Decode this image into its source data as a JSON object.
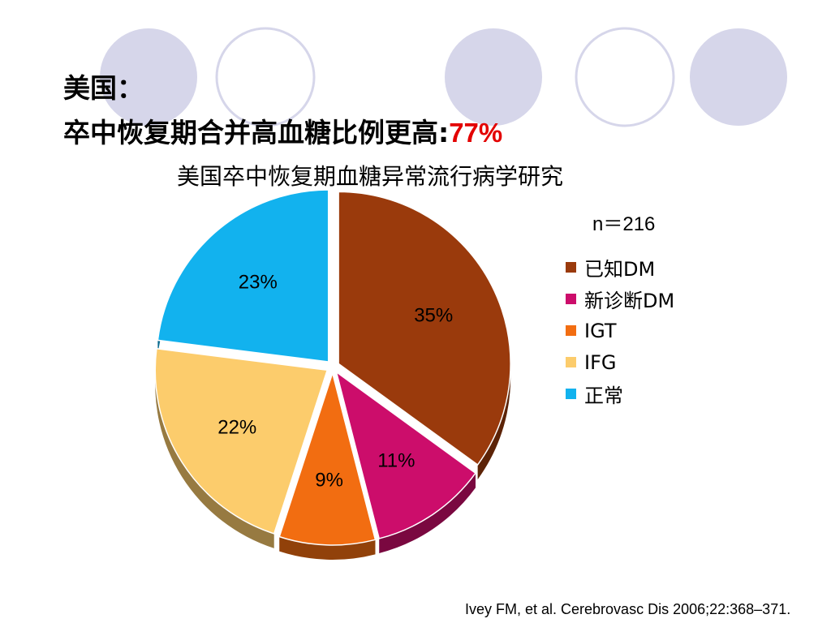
{
  "title": {
    "line1": "美国：",
    "line2_prefix": "卒中恢复期合并高血糖比例更高:",
    "line2_highlight": "77%",
    "highlight_color": "#e30000"
  },
  "citation": "Ivey FM, et al. Cerebrovasc Dis 2006;22:368–371.",
  "decor_circle_colors": {
    "filled": "#d6d6ea",
    "outline": "#d6d6ea"
  },
  "chart_data": {
    "type": "pie",
    "title": "美国卒中恢复期血糖异常流行病学研究",
    "annotation": "n＝216",
    "legend_position": "right",
    "slices": [
      {
        "label": "已知DM",
        "value": 35,
        "value_label": "35%",
        "color": "#9a3a0c"
      },
      {
        "label": "新诊断DM",
        "value": 11,
        "value_label": "11%",
        "color": "#cc0d6b"
      },
      {
        "label": "IGT",
        "value": 9,
        "value_label": "9%",
        "color": "#f26d11"
      },
      {
        "label": "IFG",
        "value": 22,
        "value_label": "22%",
        "color": "#fccc6c"
      },
      {
        "label": "正常",
        "value": 23,
        "value_label": "23%",
        "color": "#12b2ee"
      }
    ]
  }
}
